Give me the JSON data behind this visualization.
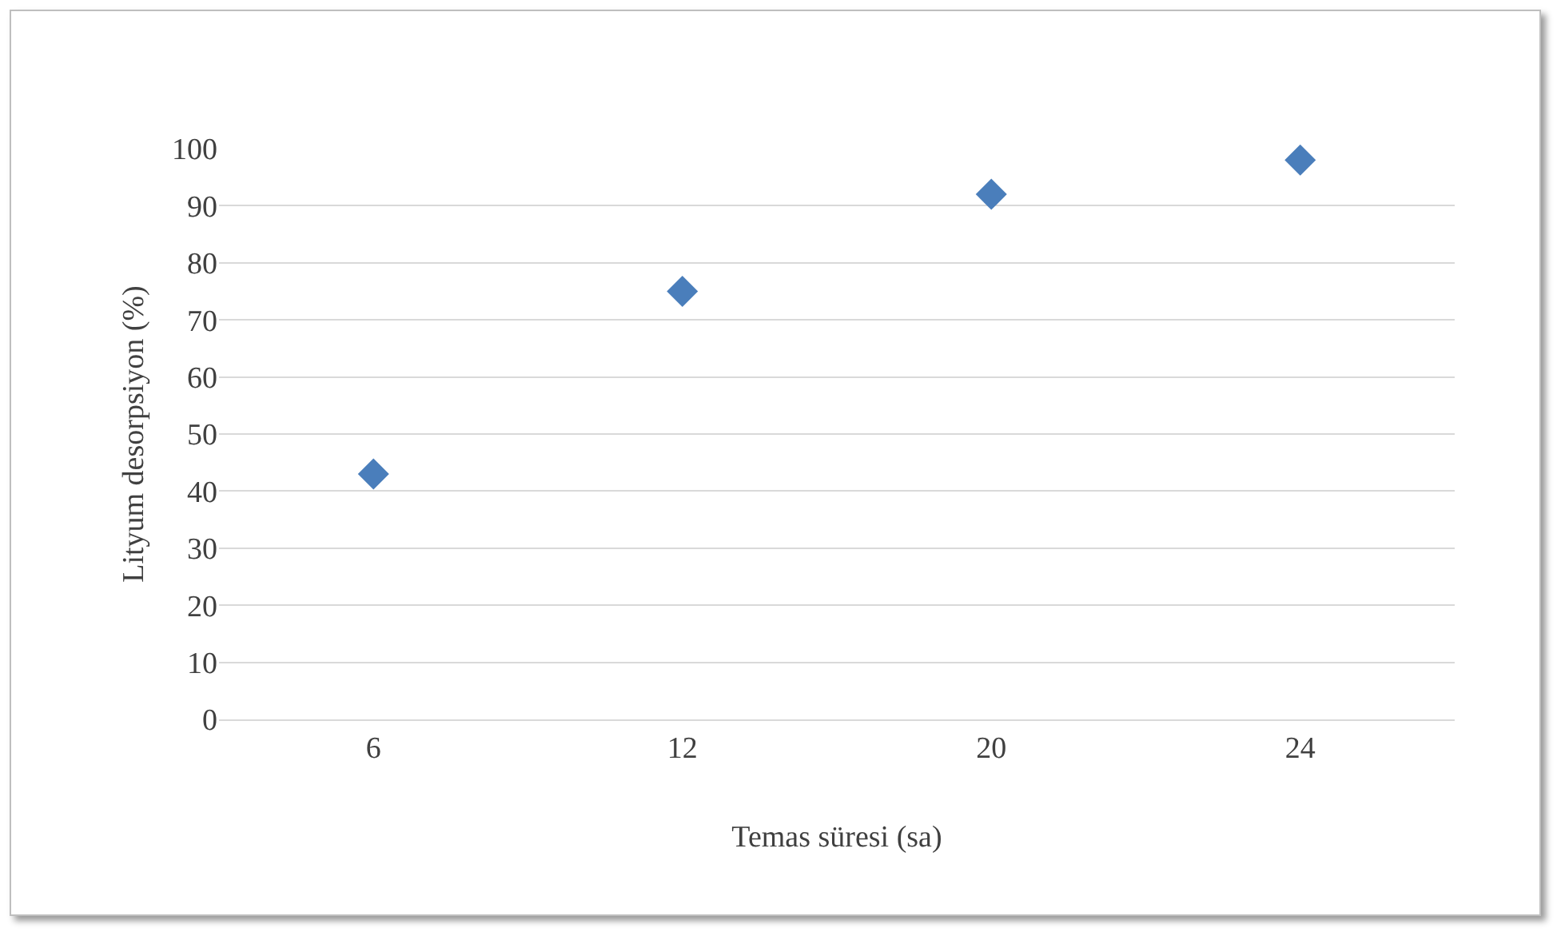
{
  "chart_data": {
    "type": "scatter",
    "xlabel": "Temas süresi (sa)",
    "ylabel": "Lityum desorpsiyon (%)",
    "categories": [
      "6",
      "12",
      "20",
      "24"
    ],
    "values": [
      43,
      75,
      92,
      98
    ],
    "color": "#4a7ebb",
    "marker": "diamond",
    "ylim": [
      0,
      100
    ],
    "yticks": [
      0,
      10,
      20,
      30,
      40,
      50,
      60,
      70,
      80,
      90,
      100
    ],
    "grid": "y",
    "legend": false
  }
}
